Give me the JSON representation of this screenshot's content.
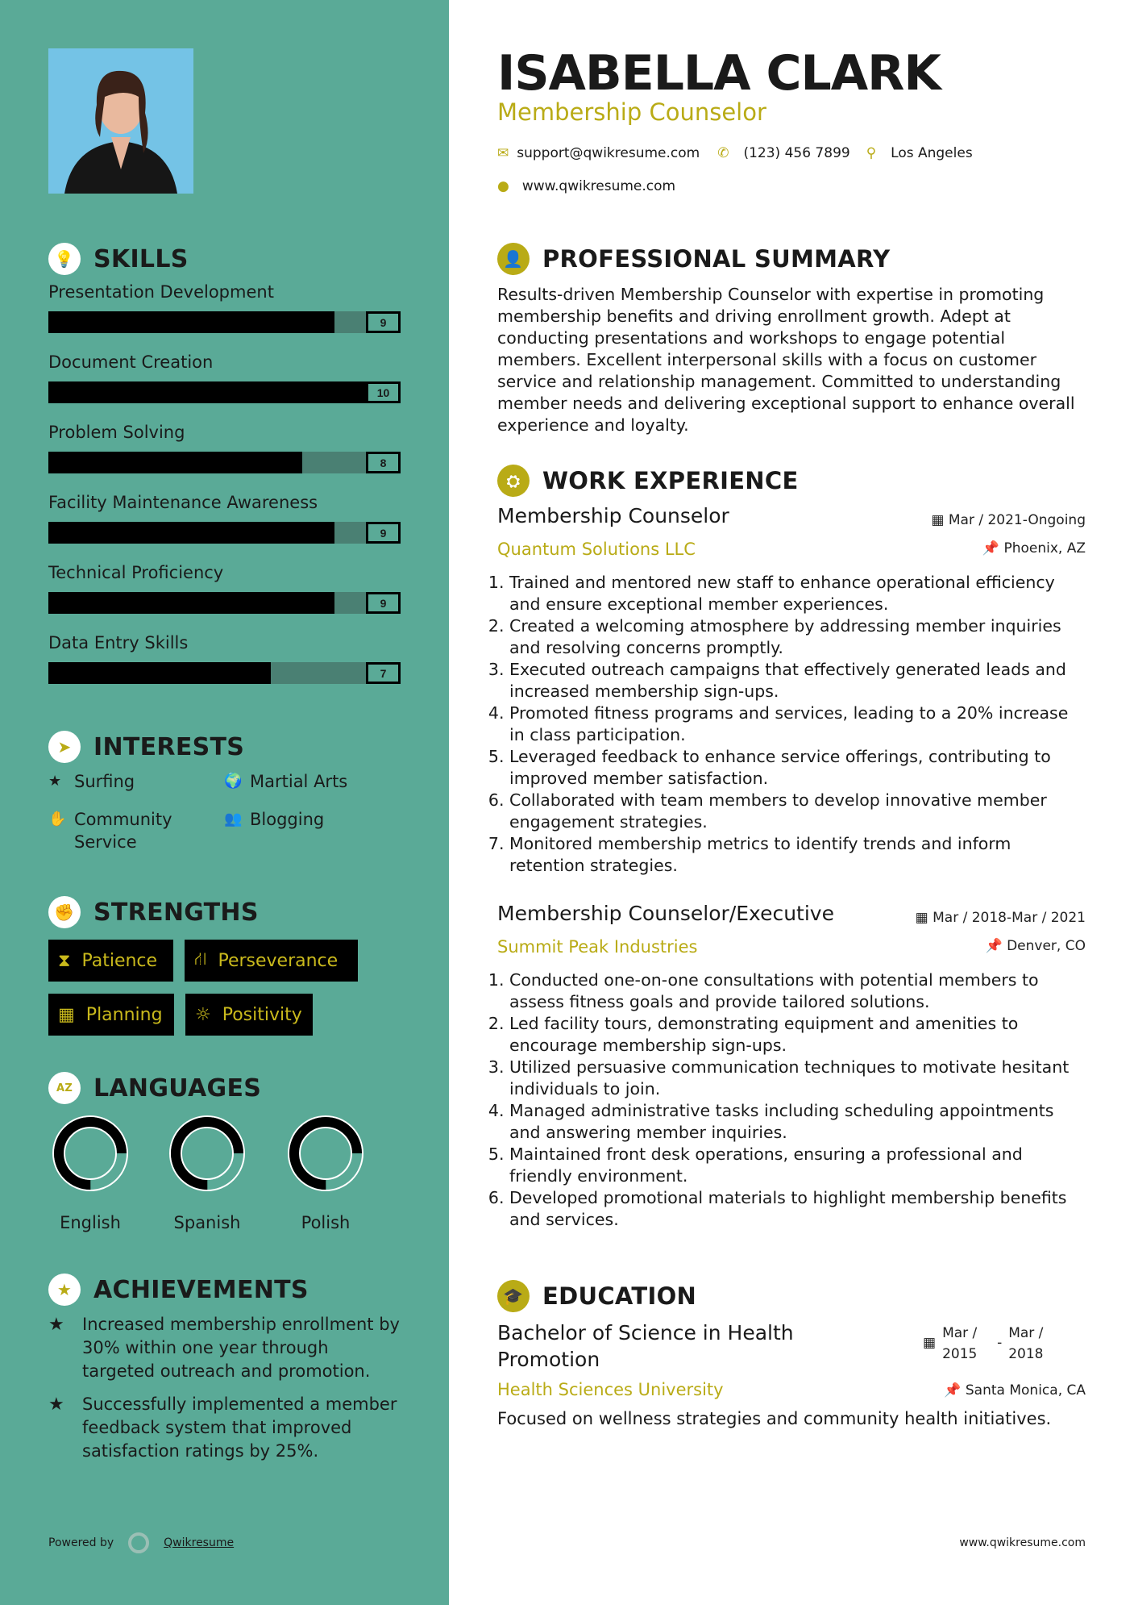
{
  "colors": {
    "sidebar": "#5aaa97",
    "accent": "#b9ab16",
    "bar_fill": "#000000",
    "bar_track": "#4a8073"
  },
  "header": {
    "name": "ISABELLA CLARK",
    "title": "Membership Counselor",
    "email": "support@qwikresume.com",
    "phone": "(123) 456 7899",
    "location": "Los Angeles",
    "website": "www.qwikresume.com"
  },
  "skills": {
    "heading": "SKILLS",
    "max": 10,
    "items": [
      {
        "label": "Presentation Development",
        "value": 9
      },
      {
        "label": "Document Creation",
        "value": 10
      },
      {
        "label": "Problem Solving",
        "value": 8
      },
      {
        "label": "Facility Maintenance Awareness",
        "value": 9
      },
      {
        "label": "Technical Proficiency",
        "value": 9
      },
      {
        "label": "Data Entry Skills",
        "value": 7
      }
    ]
  },
  "interests": {
    "heading": "INTERESTS",
    "items": [
      {
        "label": "Surfing",
        "icon": "star-icon"
      },
      {
        "label": "Martial Arts",
        "icon": "globe-icon"
      },
      {
        "label": "Community Service",
        "icon": "hand-icon"
      },
      {
        "label": "Blogging",
        "icon": "users-icon"
      }
    ]
  },
  "strengths": {
    "heading": "STRENGTHS",
    "items": [
      {
        "label": "Patience",
        "icon": "hourglass-icon"
      },
      {
        "label": "Perseverance",
        "icon": "road-icon"
      },
      {
        "label": "Planning",
        "icon": "calendar-icon"
      },
      {
        "label": "Positivity",
        "icon": "sun-icon"
      }
    ]
  },
  "languages": {
    "heading": "LANGUAGES",
    "items": [
      {
        "label": "English",
        "level": 0.75
      },
      {
        "label": "Spanish",
        "level": 0.75
      },
      {
        "label": "Polish",
        "level": 0.75
      }
    ]
  },
  "achievements": {
    "heading": "ACHIEVEMENTS",
    "items": [
      "Increased membership enrollment by 30% within one year through targeted outreach and promotion.",
      "Successfully implemented a member feedback system that improved satisfaction ratings by 25%."
    ]
  },
  "footer": {
    "powered_by": "Powered by",
    "brand": "Qwikresume",
    "website": "www.qwikresume.com"
  },
  "summary": {
    "heading": "PROFESSIONAL SUMMARY",
    "text": "Results-driven Membership Counselor with expertise in promoting membership benefits and driving enrollment growth. Adept at conducting presentations and workshops to engage potential members. Excellent interpersonal skills with a focus on customer service and relationship management. Committed to understanding member needs and delivering exceptional support to enhance overall experience and loyalty."
  },
  "experience": {
    "heading": "WORK EXPERIENCE",
    "jobs": [
      {
        "title": "Membership Counselor",
        "company": "Quantum Solutions LLC",
        "dates": "Mar / 2021-Ongoing",
        "location": "Phoenix, AZ",
        "duties": [
          "Trained and mentored new staff to enhance operational efficiency and ensure exceptional member experiences.",
          "Created a welcoming atmosphere by addressing member inquiries and resolving concerns promptly.",
          "Executed outreach campaigns that effectively generated leads and increased membership sign-ups.",
          "Promoted fitness programs and services, leading to a 20% increase in class participation.",
          "Leveraged feedback to enhance service offerings, contributing to improved member satisfaction.",
          "Collaborated with team members to develop innovative member engagement strategies.",
          "Monitored membership metrics to identify trends and inform retention strategies."
        ]
      },
      {
        "title": "Membership Counselor/Executive",
        "company": "Summit Peak Industries",
        "dates": "Mar / 2018-Mar / 2021",
        "location": "Denver, CO",
        "duties": [
          "Conducted one-on-one consultations with potential members to assess fitness goals and provide tailored solutions.",
          "Led facility tours, demonstrating equipment and amenities to encourage membership sign-ups.",
          "Utilized persuasive communication techniques to motivate hesitant individuals to join.",
          "Managed administrative tasks including scheduling appointments and answering member inquiries.",
          "Maintained front desk operations, ensuring a professional and friendly environment.",
          "Developed promotional materials to highlight membership benefits and services."
        ]
      }
    ]
  },
  "education": {
    "heading": "EDUCATION",
    "degree": "Bachelor of Science in Health Promotion",
    "school": "Health Sciences University",
    "start": "Mar / 2015",
    "end": "Mar / 2018",
    "location": "Santa Monica, CA",
    "description": "Focused on wellness strategies and community health initiatives."
  }
}
